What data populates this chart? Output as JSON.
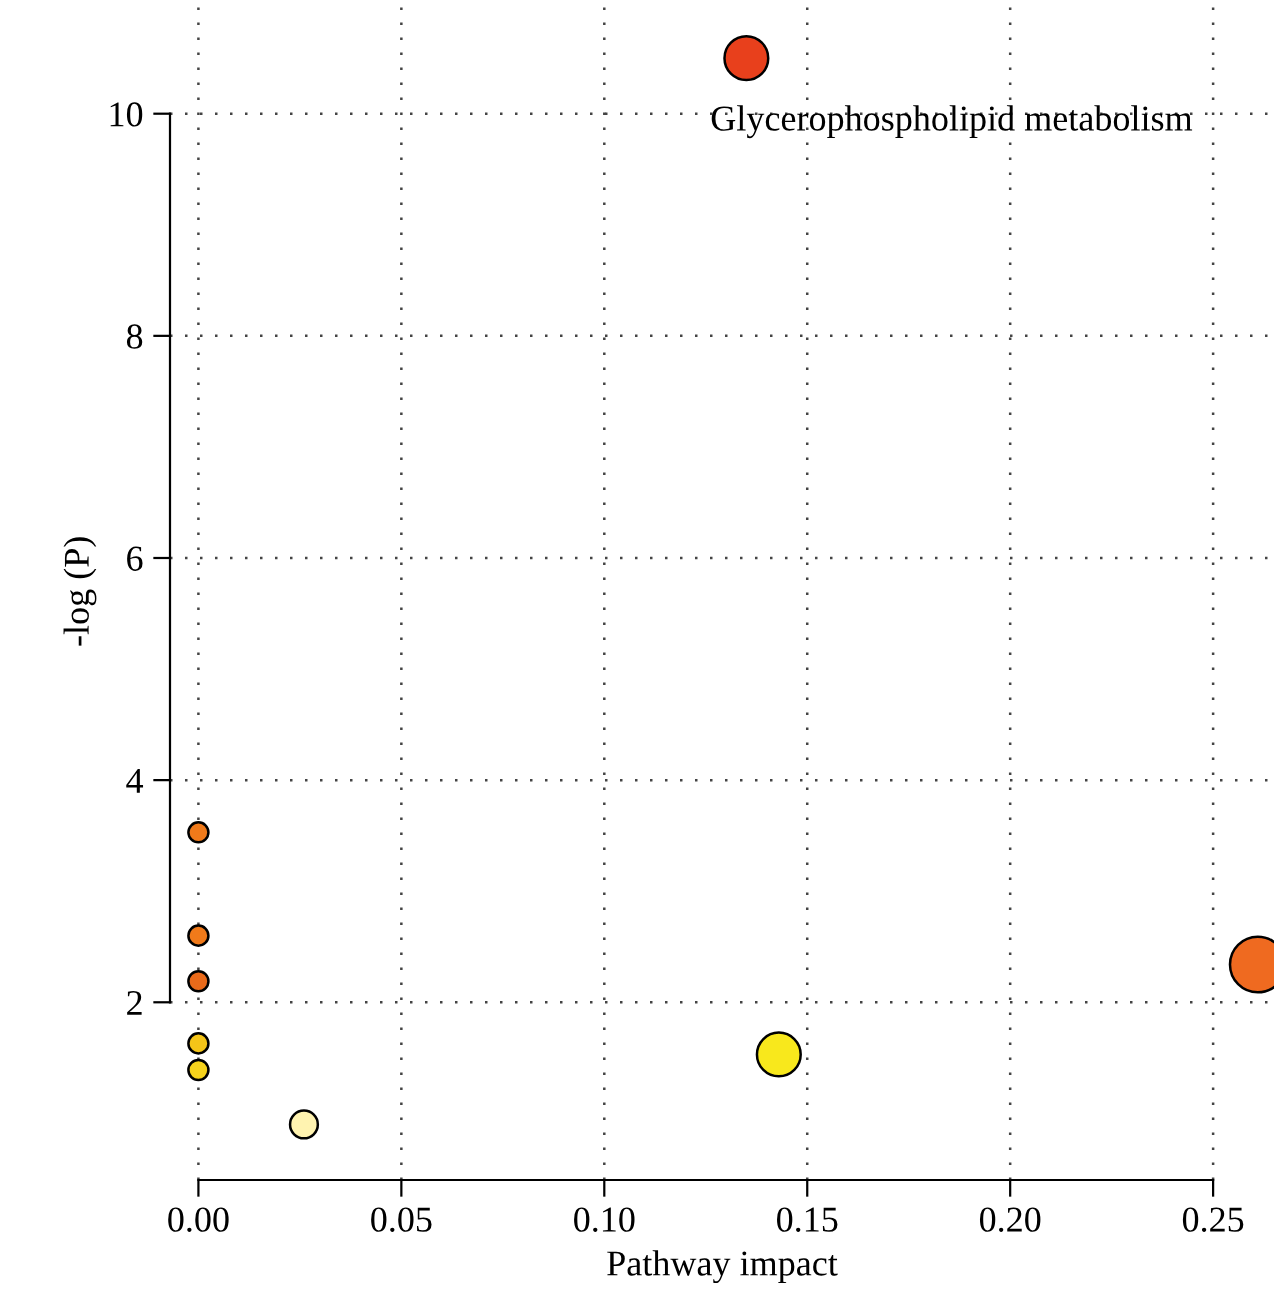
{
  "chart_data": {
    "type": "bubble",
    "xlabel": "Pathway impact",
    "ylabel": "-log (P)",
    "x": [
      0.135,
      0.0,
      0.0,
      0.0,
      0.0,
      0.0,
      0.026,
      0.143,
      0.261
    ],
    "values": [
      10.5,
      3.53,
      2.6,
      2.19,
      1.63,
      1.39,
      0.9,
      1.53,
      2.34
    ],
    "sizes": [
      0.62,
      0.13,
      0.13,
      0.13,
      0.13,
      0.13,
      0.25,
      0.62,
      1
    ],
    "colors": [
      "#e8401c",
      "#f07a1a",
      "#f07a1a",
      "#ea6a1a",
      "#f5c518",
      "#f5d21c",
      "#fff3b0",
      "#f8e81c",
      "#ef6a20"
    ],
    "xlim": [
      -0.007,
      0.265
    ],
    "ylim": [
      0.4,
      11.0
    ],
    "xticks": [
      {
        "value": 0.0,
        "label": "0.00"
      },
      {
        "value": 0.05,
        "label": "0.05"
      },
      {
        "value": 0.1,
        "label": "0.10"
      },
      {
        "value": 0.15,
        "label": "0.15"
      },
      {
        "value": 0.2,
        "label": "0.20"
      },
      {
        "value": 0.25,
        "label": "0.25"
      }
    ],
    "yticks": [
      2,
      4,
      6,
      8,
      10
    ],
    "grid": true,
    "line_style": "dotted",
    "annotations": [
      {
        "text": "Glycerophospholipid metabolism",
        "x": 0.135,
        "y": 10.5
      }
    ]
  }
}
